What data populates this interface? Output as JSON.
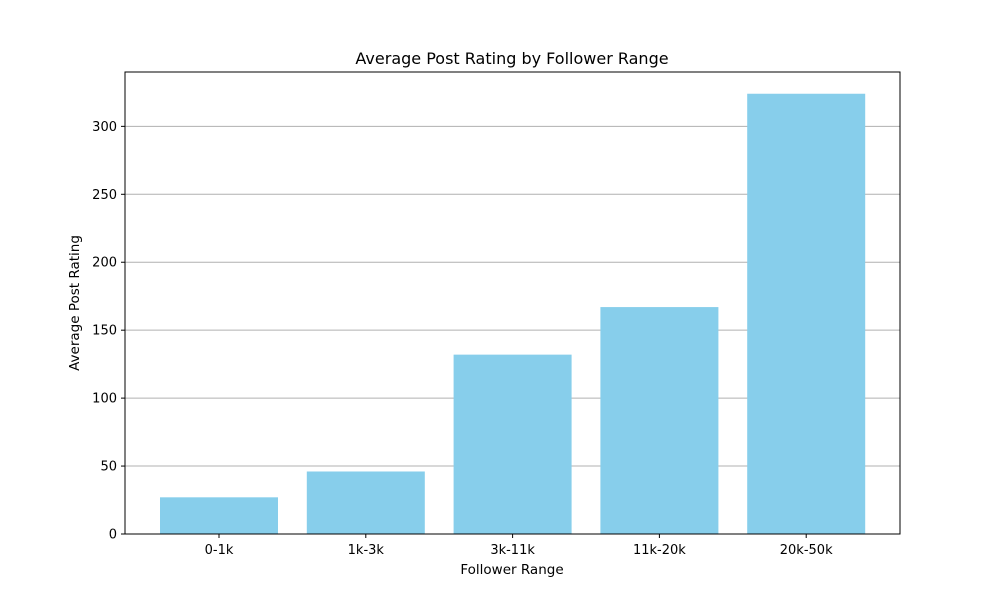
{
  "chart_data": {
    "type": "bar",
    "title": "Average Post Rating by Follower Range",
    "xlabel": "Follower Range",
    "ylabel": "Average Post Rating",
    "categories": [
      "0-1k",
      "1k-3k",
      "3k-11k",
      "11k-20k",
      "20k-50k"
    ],
    "values": [
      27,
      46,
      132,
      167,
      324
    ],
    "ylim": [
      0,
      340
    ],
    "yticks": [
      0,
      50,
      100,
      150,
      200,
      250,
      300
    ],
    "grid": {
      "y": true,
      "x": false
    },
    "bar_color": "#87ceeb",
    "grid_color": "#b0b0b0"
  }
}
